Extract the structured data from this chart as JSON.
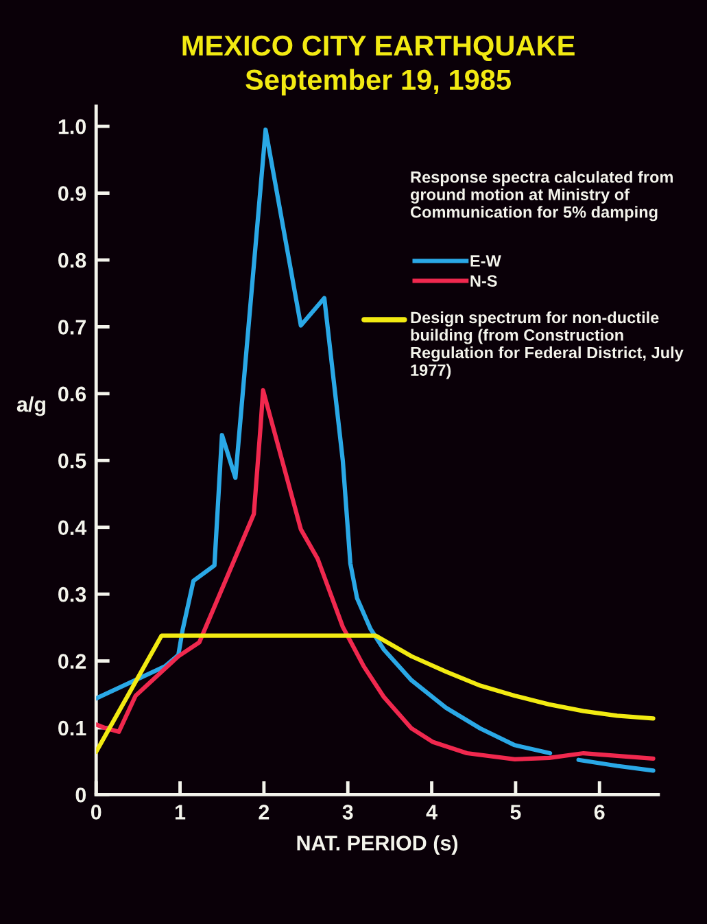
{
  "chart_data": {
    "type": "line",
    "title": "MEXICO CITY EARTHQUAKE",
    "subtitle": "September 19, 1985",
    "xlabel": "NAT. PERIOD (s)",
    "ylabel": "a/g",
    "legend_title": "Response spectra calculated from ground motion at Ministry of Communication for 5% damping",
    "xlim": [
      0,
      6.7
    ],
    "ylim": [
      0,
      1.03
    ],
    "xticks": [
      0,
      1,
      2,
      3,
      4,
      5,
      6
    ],
    "yticks": [
      {
        "value": 0,
        "label": "0"
      },
      {
        "value": 0.1,
        "label": "0.1"
      },
      {
        "value": 0.2,
        "label": "0.2"
      },
      {
        "value": 0.3,
        "label": "0.3"
      },
      {
        "value": 0.4,
        "label": "0.4"
      },
      {
        "value": 0.5,
        "label": "0.5"
      },
      {
        "value": 0.6,
        "label": "0.6"
      },
      {
        "value": 0.7,
        "label": "0.7"
      },
      {
        "value": 0.8,
        "label": "0.8"
      },
      {
        "value": 0.9,
        "label": "0.9"
      },
      {
        "value": 1.0,
        "label": "1.0"
      }
    ],
    "grid": false,
    "legend": "top right",
    "marker": "none",
    "line_style": "solid",
    "series": [
      {
        "name": "E-W",
        "color": "#2aa8e6",
        "x": [
          0,
          0.82,
          0.98,
          1.03,
          1.16,
          1.41,
          1.5,
          1.66,
          2.02,
          2.44,
          2.72,
          2.94,
          3.03,
          3.11,
          3.27,
          3.43,
          3.76,
          4.17,
          4.58,
          4.99,
          5.41,
          5.58,
          5.75,
          6.21,
          6.64
        ],
        "values": [
          0.144,
          0.192,
          0.209,
          0.246,
          0.32,
          0.343,
          0.538,
          0.474,
          0.995,
          0.702,
          0.743,
          0.5,
          0.346,
          0.294,
          0.248,
          0.217,
          0.171,
          0.13,
          0.099,
          0.074,
          0.062,
          null,
          0.052,
          0.043,
          0.036
        ]
      },
      {
        "name": "N-S",
        "color": "#f0284e",
        "x": [
          0,
          0.1,
          0.27,
          0.47,
          0.98,
          1.23,
          1.88,
          1.96,
          1.99,
          2.44,
          2.64,
          2.94,
          3.19,
          3.43,
          3.76,
          4.01,
          4.42,
          4.99,
          5.4,
          5.81,
          6.21,
          6.64
        ],
        "values": [
          0.105,
          0.1,
          0.094,
          0.148,
          0.207,
          0.228,
          0.42,
          0.551,
          0.605,
          0.397,
          0.353,
          0.251,
          0.192,
          0.146,
          0.099,
          0.079,
          0.062,
          0.053,
          0.055,
          0.062,
          0.058,
          0.054
        ]
      },
      {
        "name": "Design spectrum for non-ductile building (from Construction Regulation for Federal District, July 1977)",
        "color": "#f2ea12",
        "x": [
          0,
          0.78,
          3.33,
          3.76,
          4.17,
          4.58,
          4.99,
          5.4,
          5.81,
          6.21,
          6.64
        ],
        "values": [
          0.064,
          0.238,
          0.238,
          0.207,
          0.184,
          0.163,
          0.148,
          0.135,
          0.125,
          0.118,
          0.114
        ]
      }
    ]
  }
}
